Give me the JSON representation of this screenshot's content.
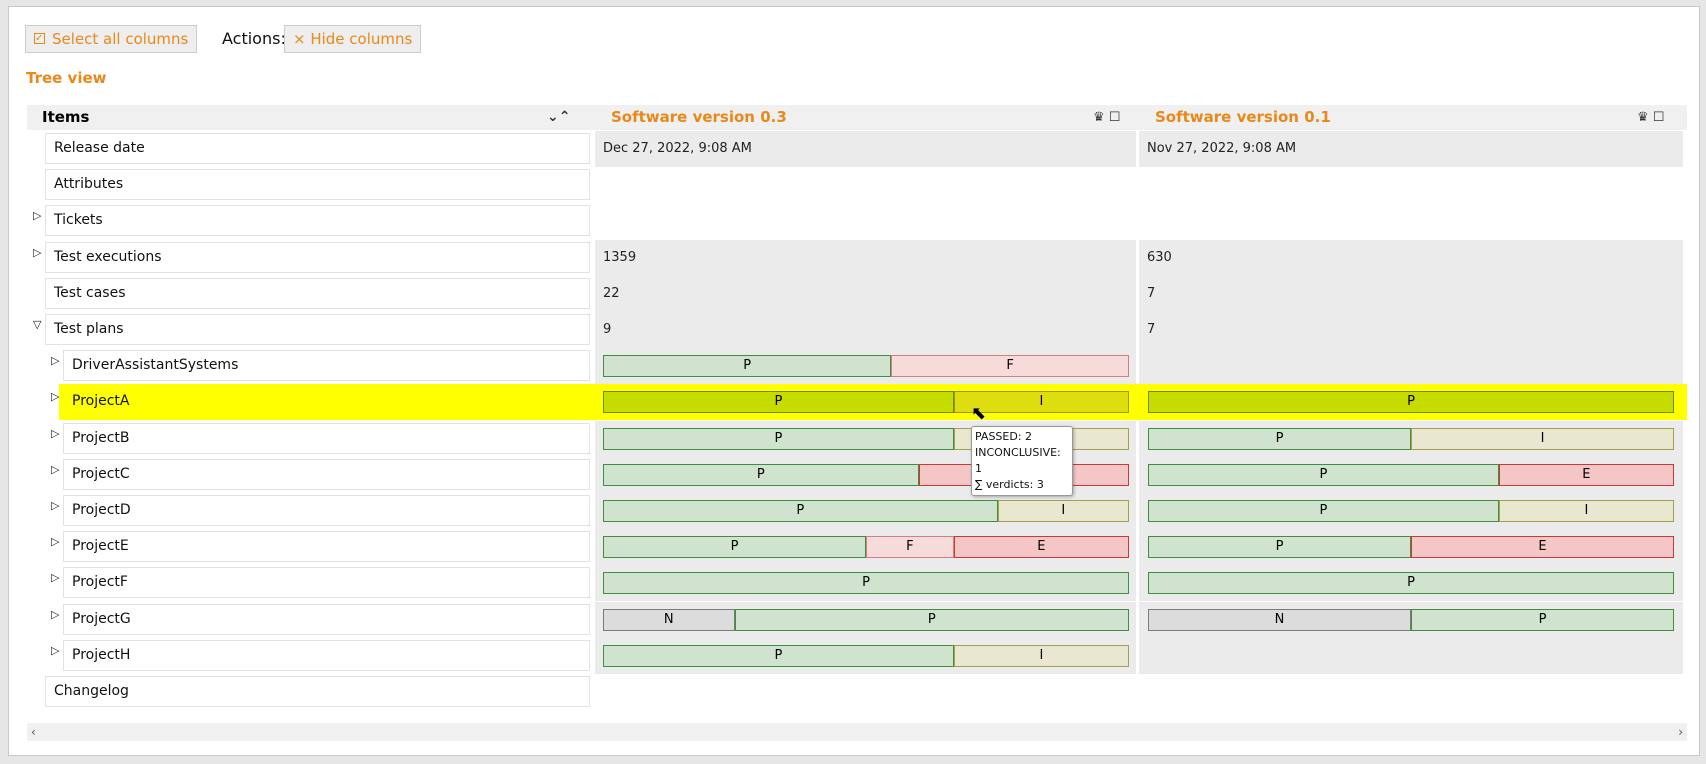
{
  "toolbar": {
    "select_all": "Select all columns",
    "actions_label": "Actions:",
    "hide_columns": "Hide columns"
  },
  "tree_view": "Tree view",
  "table": {
    "header": "Items",
    "columns": [
      "Software version 0.3",
      "Software version 0.1"
    ],
    "rows": [
      {
        "label": "Release date",
        "cells": [
          "Dec 27, 2022, 9:08 AM",
          "Nov 27, 2022, 9:08 AM"
        ]
      },
      {
        "label": "Attributes",
        "cells": [
          null,
          null
        ]
      },
      {
        "label": "Tickets",
        "cells": [
          null,
          null
        ]
      },
      {
        "label": "Test executions",
        "cells": [
          1359,
          630
        ]
      },
      {
        "label": "Test cases",
        "cells": [
          22,
          7
        ]
      },
      {
        "label": "Test plans",
        "cells": [
          9,
          7
        ]
      },
      {
        "label": "DriverAssistantSystems",
        "cells": [
          [
            "P",
            "F"
          ],
          []
        ]
      },
      {
        "label": "ProjectA",
        "cells": [
          [
            "P",
            "I"
          ],
          [
            "P"
          ]
        ]
      },
      {
        "label": "ProjectB",
        "cells": [
          [
            "P",
            "I"
          ],
          [
            "P",
            "I"
          ]
        ]
      },
      {
        "label": "ProjectC",
        "cells": [
          [
            "P",
            "E"
          ],
          [
            "P",
            "E"
          ]
        ]
      },
      {
        "label": "ProjectD",
        "cells": [
          [
            "P",
            "I"
          ],
          [
            "P",
            "I"
          ]
        ]
      },
      {
        "label": "ProjectE",
        "cells": [
          [
            "P",
            "F",
            "E"
          ],
          [
            "P",
            "E"
          ]
        ]
      },
      {
        "label": "ProjectF",
        "cells": [
          [
            "P"
          ],
          [
            "P"
          ]
        ]
      },
      {
        "label": "ProjectG",
        "cells": [
          [
            "N",
            "P"
          ],
          [
            "N",
            "P"
          ]
        ]
      },
      {
        "label": "ProjectH",
        "cells": [
          [
            "P",
            "I"
          ],
          []
        ]
      },
      {
        "label": "Changelog",
        "cells": [
          null,
          null
        ]
      }
    ]
  },
  "tooltip": {
    "lines": [
      "PASSED: 2",
      "INCONCLUSIVE: 1",
      "∑ verdicts: 3"
    ]
  }
}
